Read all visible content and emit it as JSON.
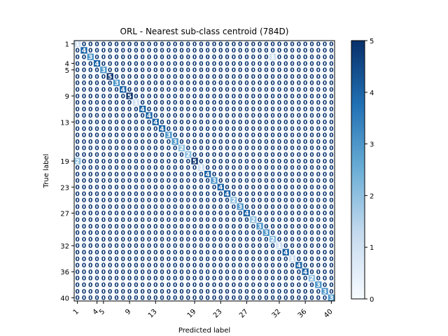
{
  "chart_data": {
    "type": "heatmap",
    "title": "ORL - Nearest sub-class centroid (784D)",
    "xlabel": "Predicted label",
    "ylabel": "True label",
    "n_classes": 40,
    "tick_labels": [
      "1",
      "4",
      "5",
      "9",
      "13",
      "19",
      "23",
      "27",
      "32",
      "36",
      "40"
    ],
    "tick_indices": [
      0,
      3,
      4,
      8,
      12,
      18,
      22,
      26,
      31,
      35,
      39
    ],
    "colormap": "Blues",
    "colorbar": {
      "min": 0,
      "max": 5,
      "ticks": [
        "0",
        "1",
        "2",
        "3",
        "4",
        "5"
      ]
    },
    "diagonal": [
      1,
      4,
      3,
      4,
      3,
      5,
      3,
      4,
      5,
      1,
      4,
      4,
      4,
      4,
      3,
      3,
      2,
      2,
      5,
      1,
      4,
      3,
      4,
      4,
      2,
      3,
      4,
      2,
      3,
      3,
      2,
      1,
      4,
      1,
      4,
      4,
      2,
      3,
      3,
      3
    ],
    "off_diagonal": [
      {
        "true": 3,
        "pred": 31,
        "value": 1
      },
      {
        "true": 19,
        "pred": 1,
        "value": 2
      }
    ]
  }
}
